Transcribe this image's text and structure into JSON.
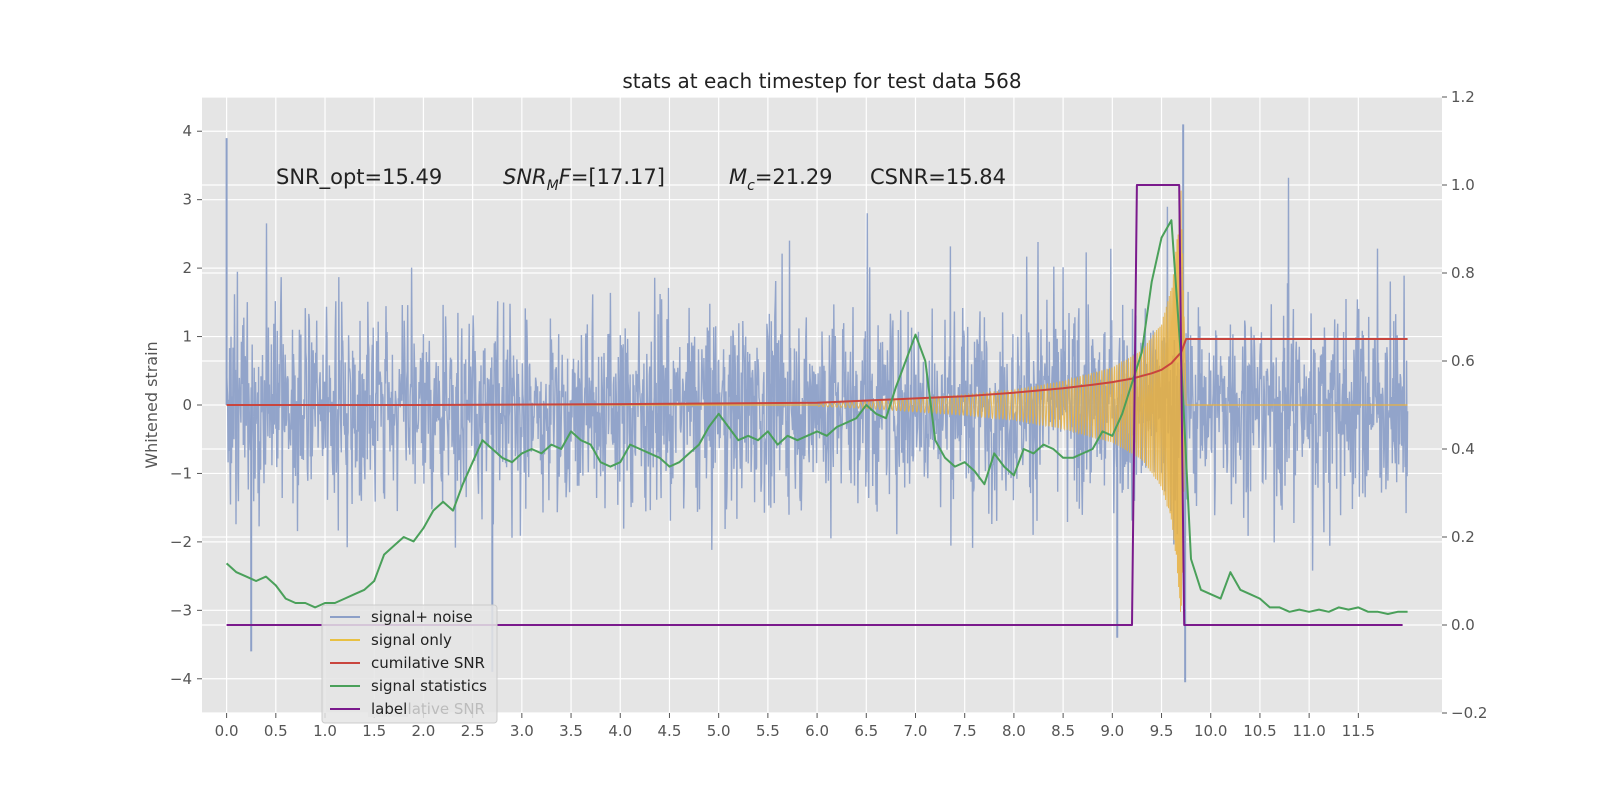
{
  "chart_data": {
    "type": "line",
    "title": "stats at each timestep for test data 568",
    "ylabel": "Whitened strain",
    "y2label": "",
    "xlim": [
      -0.25,
      12.35
    ],
    "ylim": [
      -4.5,
      4.5
    ],
    "y2lim": [
      -0.2,
      1.2
    ],
    "grid": true,
    "x_ticks": [
      0.0,
      0.5,
      1.0,
      1.5,
      2.0,
      2.5,
      3.0,
      3.5,
      4.0,
      4.5,
      5.0,
      5.5,
      6.0,
      6.5,
      7.0,
      7.5,
      8.0,
      8.5,
      9.0,
      9.5,
      10.0,
      10.5,
      11.0,
      11.5
    ],
    "x_tick_labels": [
      "0.0",
      "0.5",
      "1.0",
      "1.5",
      "2.0",
      "2.5",
      "3.0",
      "3.5",
      "4.0",
      "4.5",
      "5.0",
      "5.5",
      "6.0",
      "6.5",
      "7.0",
      "7.5",
      "8.0",
      "8.5",
      "9.0",
      "9.5",
      "10.0",
      "10.5",
      "11.0",
      "11.5"
    ],
    "y_ticks": [
      -4,
      -3,
      -2,
      -1,
      0,
      1,
      2,
      3,
      4
    ],
    "y_tick_labels": [
      "−4",
      "−3",
      "−2",
      "−1",
      "0",
      "1",
      "2",
      "3",
      "4"
    ],
    "y2_ticks": [
      -0.2,
      0.0,
      0.2,
      0.4,
      0.6,
      0.8,
      1.0,
      1.2
    ],
    "y2_tick_labels": [
      "−0.2",
      "0.0",
      "0.2",
      "0.4",
      "0.6",
      "0.8",
      "1.0",
      "1.2"
    ],
    "annotations": [
      {
        "id": "snr-opt",
        "text": "SNR_opt=15.49",
        "x": 0.2,
        "y": 3.2
      },
      {
        "id": "snr-mf",
        "text": "SNRMF=[17.17]",
        "x": 2.6,
        "y": 3.2
      },
      {
        "id": "chirp-mass",
        "text": "Mc=21.29",
        "x": 5.0,
        "y": 3.2
      },
      {
        "id": "csnr",
        "text": "CSNR=15.84",
        "x": 6.5,
        "y": 3.2
      }
    ],
    "legend": {
      "placement": "lower-left",
      "entries": [
        {
          "label": "signal+ noise",
          "color": "#8da0c8"
        },
        {
          "label": "signal only",
          "color": "#e8c042"
        },
        {
          "label": "cumilative SNR",
          "color": "#c9453e"
        },
        {
          "label": "signal statistics",
          "color": "#4aa05a"
        },
        {
          "label": "label",
          "color": "#7a1a8c"
        }
      ],
      "hidden_text": "cumilative SNR"
    },
    "series": [
      {
        "name": "signal+ noise",
        "axis": "left",
        "color": "#8da0c8",
        "style": "noise-band",
        "x_range": [
          0.0,
          12.0
        ],
        "typical_band": [
          -1.8,
          1.9
        ],
        "peak_band": [
          -4.1,
          4.1
        ],
        "features": [
          {
            "x": 0.0,
            "value": 3.9
          },
          {
            "x": 9.72,
            "value": 4.1
          },
          {
            "x": 9.74,
            "value": -4.05
          },
          {
            "x": 0.25,
            "value": -3.6
          },
          {
            "x": 2.7,
            "value": -3.9
          },
          {
            "x": 9.05,
            "value": -3.4
          }
        ]
      },
      {
        "name": "signal only",
        "axis": "left",
        "color": "#e8b040",
        "style": "chirp",
        "x": [
          0.0,
          6.0,
          6.5,
          7.0,
          7.5,
          8.0,
          8.5,
          9.0,
          9.3,
          9.5,
          9.6,
          9.65,
          9.7,
          9.75,
          12.0
        ],
        "envelope": [
          0.0,
          0.02,
          0.05,
          0.1,
          0.15,
          0.22,
          0.35,
          0.55,
          0.8,
          1.2,
          1.7,
          2.3,
          3.2,
          0.0,
          0.0
        ]
      },
      {
        "name": "cumilative SNR",
        "axis": "right",
        "color": "#c9453e",
        "x": [
          0.0,
          2.0,
          4.0,
          6.0,
          7.0,
          7.5,
          8.0,
          8.5,
          8.8,
          9.0,
          9.2,
          9.4,
          9.5,
          9.6,
          9.7,
          9.75,
          12.0
        ],
        "values": [
          0.5,
          0.5,
          0.502,
          0.505,
          0.515,
          0.52,
          0.528,
          0.538,
          0.546,
          0.552,
          0.56,
          0.572,
          0.58,
          0.595,
          0.62,
          0.65,
          0.65
        ]
      },
      {
        "name": "signal statistics",
        "axis": "right",
        "color": "#4aa05a",
        "x": [
          0.0,
          0.1,
          0.2,
          0.3,
          0.4,
          0.5,
          0.6,
          0.7,
          0.8,
          0.9,
          1.0,
          1.1,
          1.2,
          1.3,
          1.4,
          1.5,
          1.6,
          1.7,
          1.8,
          1.9,
          2.0,
          2.1,
          2.2,
          2.3,
          2.4,
          2.5,
          2.6,
          2.7,
          2.8,
          2.9,
          3.0,
          3.1,
          3.2,
          3.3,
          3.4,
          3.5,
          3.6,
          3.7,
          3.8,
          3.9,
          4.0,
          4.1,
          4.2,
          4.3,
          4.4,
          4.5,
          4.6,
          4.7,
          4.8,
          4.9,
          5.0,
          5.1,
          5.2,
          5.3,
          5.4,
          5.5,
          5.6,
          5.7,
          5.8,
          5.9,
          6.0,
          6.1,
          6.2,
          6.3,
          6.4,
          6.5,
          6.6,
          6.7,
          6.8,
          6.9,
          7.0,
          7.1,
          7.2,
          7.3,
          7.4,
          7.5,
          7.6,
          7.7,
          7.8,
          7.9,
          8.0,
          8.1,
          8.2,
          8.3,
          8.4,
          8.5,
          8.6,
          8.7,
          8.8,
          8.9,
          9.0,
          9.1,
          9.2,
          9.3,
          9.4,
          9.5,
          9.6,
          9.7,
          9.8,
          9.9,
          10.0,
          10.1,
          10.2,
          10.3,
          10.4,
          10.5,
          10.6,
          10.7,
          10.8,
          10.9,
          11.0,
          11.1,
          11.2,
          11.3,
          11.4,
          11.5,
          11.6,
          11.7,
          11.8,
          11.9,
          12.0
        ],
        "values": [
          0.14,
          0.12,
          0.11,
          0.1,
          0.11,
          0.09,
          0.06,
          0.05,
          0.05,
          0.04,
          0.05,
          0.05,
          0.06,
          0.07,
          0.08,
          0.1,
          0.16,
          0.18,
          0.2,
          0.19,
          0.22,
          0.26,
          0.28,
          0.26,
          0.32,
          0.37,
          0.42,
          0.4,
          0.38,
          0.37,
          0.39,
          0.4,
          0.39,
          0.41,
          0.4,
          0.44,
          0.42,
          0.41,
          0.37,
          0.36,
          0.37,
          0.41,
          0.4,
          0.39,
          0.38,
          0.36,
          0.37,
          0.39,
          0.41,
          0.45,
          0.48,
          0.45,
          0.42,
          0.43,
          0.42,
          0.44,
          0.41,
          0.43,
          0.42,
          0.43,
          0.44,
          0.43,
          0.45,
          0.46,
          0.47,
          0.5,
          0.48,
          0.47,
          0.54,
          0.6,
          0.66,
          0.6,
          0.42,
          0.38,
          0.36,
          0.37,
          0.35,
          0.32,
          0.39,
          0.36,
          0.34,
          0.4,
          0.39,
          0.41,
          0.4,
          0.38,
          0.38,
          0.39,
          0.4,
          0.44,
          0.43,
          0.48,
          0.55,
          0.62,
          0.78,
          0.88,
          0.92,
          0.6,
          0.15,
          0.08,
          0.07,
          0.06,
          0.12,
          0.08,
          0.07,
          0.06,
          0.04,
          0.04,
          0.03,
          0.035,
          0.03,
          0.035,
          0.03,
          0.04,
          0.035,
          0.04,
          0.03,
          0.03,
          0.025,
          0.03,
          0.03
        ]
      },
      {
        "name": "label",
        "axis": "right",
        "color": "#7a1a8c",
        "x": [
          0.0,
          9.2,
          9.25,
          9.68,
          9.73,
          11.95
        ],
        "values": [
          0.0,
          0.0,
          1.0,
          1.0,
          0.0,
          0.0
        ]
      }
    ]
  }
}
